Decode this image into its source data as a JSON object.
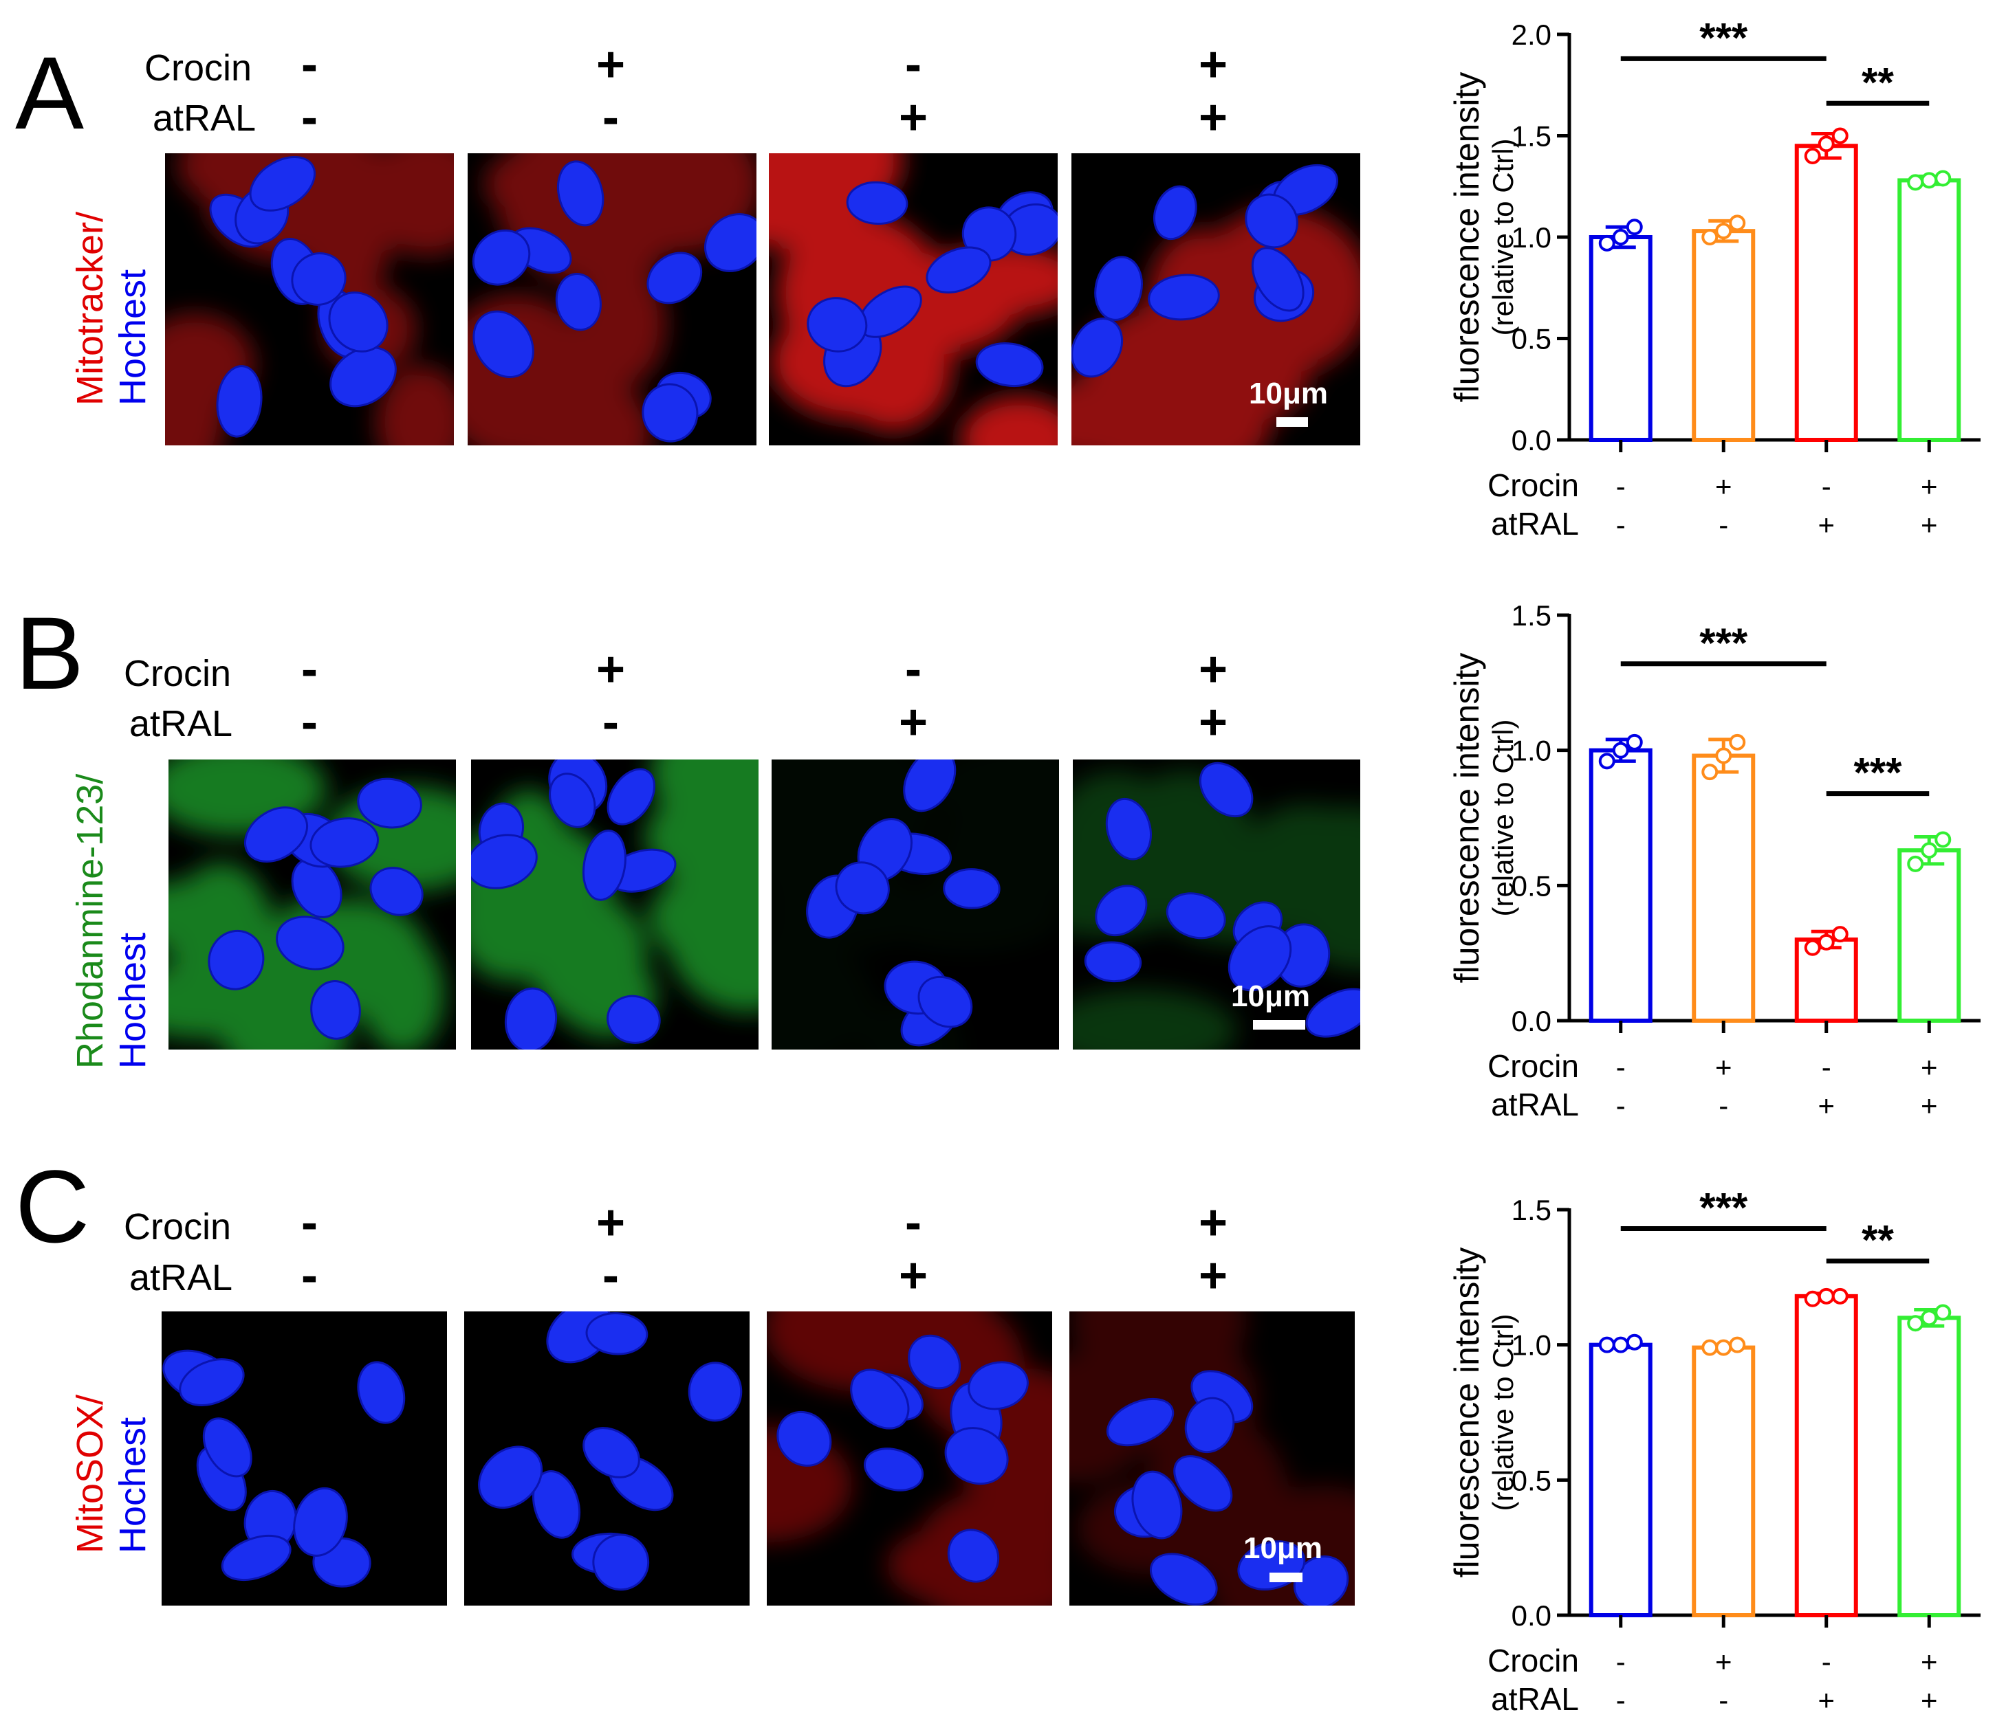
{
  "rows": [
    {
      "letter": "A",
      "crocin_label": "Crocin",
      "atral_label": "atRAL",
      "crocin": [
        "-",
        "+",
        "-",
        "+"
      ],
      "atral": [
        "-",
        "-",
        "+",
        "+"
      ],
      "stain_top": "Mitotracker/",
      "stain_bottom": "Hochest",
      "stain_top_color": "#e00000",
      "stain_bottom_color": "#0000ee",
      "scale_label": "10μm",
      "tile_stain_color": "#cc1414",
      "tile_stain_levels": [
        0.55,
        0.55,
        0.9,
        0.7
      ]
    },
    {
      "letter": "B",
      "crocin_label": "Crocin",
      "atral_label": "atRAL",
      "crocin": [
        "-",
        "+",
        "-",
        "+"
      ],
      "atral": [
        "-",
        "-",
        "+",
        "+"
      ],
      "stain_top": "Rhodanmine-123/",
      "stain_bottom": "Hochest",
      "stain_top_color": "#1a8a1a",
      "stain_bottom_color": "#0000ee",
      "scale_label": "10μm",
      "tile_stain_color": "#1e9a2a",
      "tile_stain_levels": [
        0.8,
        0.8,
        0.05,
        0.35
      ]
    },
    {
      "letter": "C",
      "crocin_label": "Crocin",
      "atral_label": "atRAL",
      "crocin": [
        "-",
        "+",
        "-",
        "+"
      ],
      "atral": [
        "-",
        "-",
        "+",
        "+"
      ],
      "stain_top": "MitoSOX/",
      "stain_bottom": "Hochest",
      "stain_top_color": "#e00000",
      "stain_bottom_color": "#0000ee",
      "scale_label": "10μm",
      "tile_stain_color": "#d01010",
      "tile_stain_levels": [
        0.0,
        0.0,
        0.45,
        0.25
      ]
    }
  ],
  "chart_data": [
    {
      "type": "bar",
      "ylabel": "fluorescence intensity",
      "ylabel2": "(relative to Ctrl)",
      "ylim": [
        0,
        2.0
      ],
      "yticks": [
        "0.0",
        "0.5",
        "1.0",
        "1.5",
        "2.0"
      ],
      "groups": {
        "crocin_label": "Crocin",
        "atral_label": "atRAL",
        "crocin": [
          "-",
          "+",
          "-",
          "+"
        ],
        "atral": [
          "-",
          "-",
          "+",
          "+"
        ]
      },
      "colors": [
        "#0000e6",
        "#ff8c1a",
        "#ff0000",
        "#33ee33"
      ],
      "values": [
        1.0,
        1.03,
        1.45,
        1.28
      ],
      "errors": [
        0.05,
        0.05,
        0.06,
        0.02
      ],
      "points": [
        [
          0.97,
          1.0,
          1.05
        ],
        [
          1.0,
          1.03,
          1.07
        ],
        [
          1.4,
          1.46,
          1.5
        ],
        [
          1.27,
          1.28,
          1.29
        ]
      ],
      "significance": [
        {
          "from": 0,
          "to": 2,
          "label": "***",
          "level": 1.88
        },
        {
          "from": 2,
          "to": 3,
          "label": "**",
          "level": 1.66
        }
      ]
    },
    {
      "type": "bar",
      "ylabel": "fluorescence intensity",
      "ylabel2": "(relative to Ctrl)",
      "ylim": [
        0,
        1.5
      ],
      "yticks": [
        "0.0",
        "0.5",
        "1.0",
        "1.5"
      ],
      "groups": {
        "crocin_label": "Crocin",
        "atral_label": "atRAL",
        "crocin": [
          "-",
          "+",
          "-",
          "+"
        ],
        "atral": [
          "-",
          "-",
          "+",
          "+"
        ]
      },
      "colors": [
        "#0000e6",
        "#ff8c1a",
        "#ff0000",
        "#33ee33"
      ],
      "values": [
        1.0,
        0.98,
        0.3,
        0.63
      ],
      "errors": [
        0.04,
        0.06,
        0.03,
        0.05
      ],
      "points": [
        [
          0.96,
          1.0,
          1.03
        ],
        [
          0.92,
          0.98,
          1.03
        ],
        [
          0.27,
          0.29,
          0.32
        ],
        [
          0.58,
          0.63,
          0.67
        ]
      ],
      "significance": [
        {
          "from": 0,
          "to": 2,
          "label": "***",
          "level": 1.32
        },
        {
          "from": 2,
          "to": 3,
          "label": "***",
          "level": 0.84
        }
      ]
    },
    {
      "type": "bar",
      "ylabel": "fluorescence intensity",
      "ylabel2": "(relative to Ctrl)",
      "ylim": [
        0,
        1.5
      ],
      "yticks": [
        "0.0",
        "0.5",
        "1.0",
        "1.5"
      ],
      "groups": {
        "crocin_label": "Crocin",
        "atral_label": "atRAL",
        "crocin": [
          "-",
          "+",
          "-",
          "+"
        ],
        "atral": [
          "-",
          "-",
          "+",
          "+"
        ]
      },
      "colors": [
        "#0000e6",
        "#ff8c1a",
        "#ff0000",
        "#33ee33"
      ],
      "values": [
        1.0,
        0.99,
        1.18,
        1.1
      ],
      "errors": [
        0.01,
        0.005,
        0.01,
        0.03
      ],
      "points": [
        [
          1.0,
          1.0,
          1.01
        ],
        [
          0.99,
          0.99,
          1.0
        ],
        [
          1.17,
          1.18,
          1.18
        ],
        [
          1.08,
          1.1,
          1.12
        ]
      ],
      "significance": [
        {
          "from": 0,
          "to": 2,
          "label": "***",
          "level": 1.43
        },
        {
          "from": 2,
          "to": 3,
          "label": "**",
          "level": 1.31
        }
      ]
    }
  ]
}
